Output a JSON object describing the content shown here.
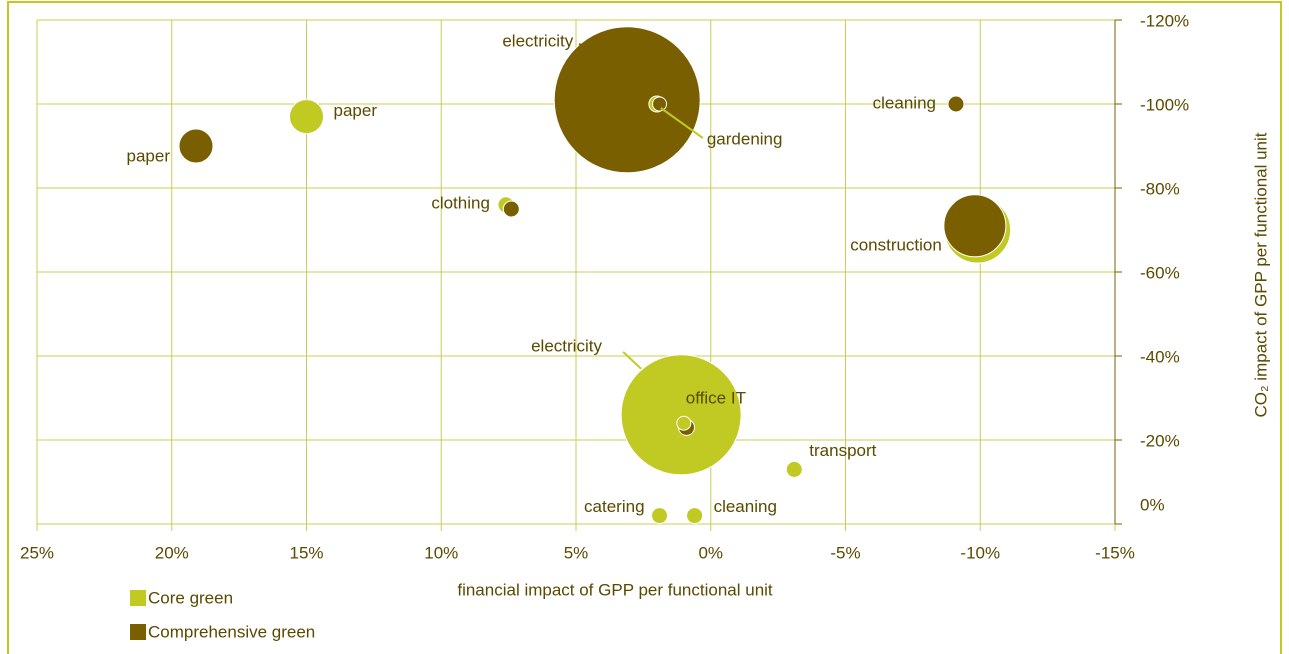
{
  "chart_data": {
    "type": "bubble",
    "x_label": "financial impact of GPP per functional unit",
    "y_label": "CO₂ impact of GPP per functional unit",
    "xlim": [
      25,
      -15
    ],
    "xticks": [
      {
        "value": 25,
        "label": "25%"
      },
      {
        "value": 20,
        "label": "20%"
      },
      {
        "value": 15,
        "label": "15%"
      },
      {
        "value": 10,
        "label": "10%"
      },
      {
        "value": 5,
        "label": "5%"
      },
      {
        "value": 0,
        "label": "0%"
      },
      {
        "value": -5,
        "label": "-5%"
      },
      {
        "value": -10,
        "label": "-10%"
      },
      {
        "value": -15,
        "label": "-15%"
      }
    ],
    "ylim": [
      0,
      -120
    ],
    "yticks": [
      {
        "value": 0,
        "label": "0%"
      },
      {
        "value": -20,
        "label": "-20%"
      },
      {
        "value": -40,
        "label": "-40%"
      },
      {
        "value": -60,
        "label": "-60%"
      },
      {
        "value": -80,
        "label": "-80%"
      },
      {
        "value": -100,
        "label": "-100%"
      },
      {
        "value": -120,
        "label": "-120%"
      }
    ],
    "grid": true,
    "legend": "bottom-left",
    "series": [
      {
        "name": "Core green",
        "color": "#c1c923",
        "labels": [
          "paper",
          "electricity",
          "office IT",
          "clothing",
          "gardening",
          null,
          "transport",
          "catering",
          "cleaning"
        ],
        "x": [
          15.0,
          1.1,
          1.0,
          7.6,
          2.0,
          -9.9,
          -3.1,
          1.9,
          0.6
        ],
        "values": [
          -97,
          -26,
          -24,
          -76,
          -100,
          -70,
          -13,
          -2,
          -2
        ],
        "sizes": [
          17,
          60,
          7,
          8,
          8,
          33,
          8,
          8,
          8
        ]
      },
      {
        "name": "Comprehensive green",
        "color": "#7a5f00",
        "labels": [
          "paper",
          "electricity",
          null,
          null,
          null,
          "cleaning",
          "construction"
        ],
        "x": [
          19.1,
          3.1,
          1.9,
          7.4,
          0.9,
          -9.1,
          -9.8
        ],
        "values": [
          -90,
          -101,
          -100,
          -75,
          -23,
          -100,
          -71
        ],
        "sizes": [
          17,
          73,
          7,
          8,
          8,
          8,
          31
        ]
      }
    ]
  }
}
